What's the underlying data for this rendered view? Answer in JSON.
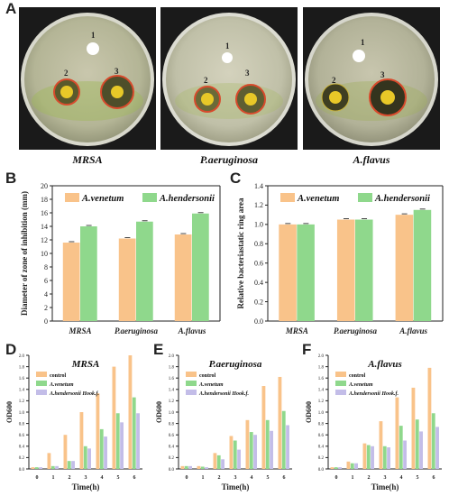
{
  "panel_labels": {
    "A": "A",
    "B": "B",
    "C": "C",
    "D": "D",
    "E": "E",
    "F": "F"
  },
  "plates": [
    {
      "caption": "MRSA",
      "spots": [
        "1",
        "2",
        "3"
      ]
    },
    {
      "caption": "P.aeruginosa",
      "spots": [
        "1",
        "2",
        "3"
      ]
    },
    {
      "caption": "A.flavus",
      "spots": [
        "1",
        "2",
        "3"
      ]
    }
  ],
  "colors": {
    "orange": "#f9c38a",
    "green": "#8fd88c",
    "purple": "#c3bde8",
    "error": "#444444"
  },
  "chart_data": [
    {
      "id": "B",
      "type": "bar",
      "categories": [
        "MRSA",
        "P.aeruginosa",
        "A.flavus"
      ],
      "series": [
        {
          "name": "A.venetum",
          "values": [
            11.6,
            12.2,
            12.8
          ]
        },
        {
          "name": "A.hendersonii",
          "values": [
            14.0,
            14.7,
            15.9
          ]
        }
      ],
      "ylabel": "Diameter of zone of inhibition (mm)",
      "ylim": [
        0,
        20
      ],
      "yticks": [
        "0",
        "2",
        "4",
        "6",
        "8",
        "10",
        "12",
        "14",
        "16",
        "18",
        "20"
      ],
      "legend": "top"
    },
    {
      "id": "C",
      "type": "bar",
      "categories": [
        "MRSA",
        "P.aeruginosa",
        "A.flavus"
      ],
      "series": [
        {
          "name": "A.venetum",
          "values": [
            1.0,
            1.05,
            1.1
          ]
        },
        {
          "name": "A.hendersonii",
          "values": [
            1.0,
            1.05,
            1.15
          ]
        }
      ],
      "ylabel": "Relative bacteriastatic ring area",
      "ylim": [
        0,
        1.4
      ],
      "yticks": [
        "0.0",
        "0.2",
        "0.4",
        "0.6",
        "0.8",
        "1.0",
        "1.2",
        "1.4"
      ],
      "legend": "top"
    },
    {
      "id": "D",
      "type": "bar",
      "title": "MRSA",
      "categories": [
        "0",
        "1",
        "2",
        "3",
        "4",
        "5",
        "6"
      ],
      "series": [
        {
          "name": "control",
          "values": [
            0.03,
            0.28,
            0.6,
            1.0,
            1.33,
            1.8,
            2.0
          ]
        },
        {
          "name": "A.venetum",
          "values": [
            0.03,
            0.05,
            0.14,
            0.4,
            0.7,
            0.98,
            1.26
          ]
        },
        {
          "name": "A.hendersonii Hook.f.",
          "values": [
            0.03,
            0.05,
            0.14,
            0.36,
            0.57,
            0.82,
            0.98
          ]
        }
      ],
      "xlabel": "Time(h)",
      "ylabel": "OD600",
      "ylim": [
        0,
        2.0
      ],
      "yticks": [
        "0.0",
        "0.2",
        "0.4",
        "0.6",
        "0.8",
        "1.0",
        "1.2",
        "1.4",
        "1.6",
        "1.8",
        "2.0"
      ],
      "legend": "top-left"
    },
    {
      "id": "E",
      "type": "bar",
      "title": "P.aeruginosa",
      "categories": [
        "0",
        "1",
        "2",
        "3",
        "4",
        "5",
        "6"
      ],
      "series": [
        {
          "name": "control",
          "values": [
            0.05,
            0.05,
            0.28,
            0.58,
            0.86,
            1.46,
            1.62
          ]
        },
        {
          "name": "A.venetum",
          "values": [
            0.05,
            0.04,
            0.24,
            0.5,
            0.65,
            0.86,
            1.02
          ]
        },
        {
          "name": "A.hendersonii Hook.f.",
          "values": [
            0.05,
            0.03,
            0.17,
            0.34,
            0.6,
            0.67,
            0.77
          ]
        }
      ],
      "xlabel": "Time(h)",
      "ylabel": "OD600",
      "ylim": [
        0,
        2.0
      ],
      "yticks": [
        "0.0",
        "0.2",
        "0.4",
        "0.6",
        "0.8",
        "1.0",
        "1.2",
        "1.4",
        "1.6",
        "1.8",
        "2.0"
      ],
      "legend": "top-left"
    },
    {
      "id": "F",
      "type": "bar",
      "title": "A.flavus",
      "categories": [
        "0",
        "1",
        "2",
        "3",
        "4",
        "5",
        "6"
      ],
      "series": [
        {
          "name": "control",
          "values": [
            0.03,
            0.13,
            0.45,
            0.84,
            1.26,
            1.43,
            1.78
          ]
        },
        {
          "name": "A.venetum",
          "values": [
            0.03,
            0.1,
            0.42,
            0.4,
            0.76,
            0.87,
            0.98
          ]
        },
        {
          "name": "A.hendersonii Hook.f.",
          "values": [
            0.03,
            0.1,
            0.4,
            0.38,
            0.5,
            0.66,
            0.74
          ]
        }
      ],
      "xlabel": "Time(h)",
      "ylabel": "OD600",
      "ylim": [
        0,
        2.0
      ],
      "yticks": [
        "0.0",
        "0.2",
        "0.4",
        "0.6",
        "0.8",
        "1.0",
        "1.2",
        "1.4",
        "1.6",
        "1.8",
        "2.0"
      ],
      "legend": "top-left"
    }
  ]
}
